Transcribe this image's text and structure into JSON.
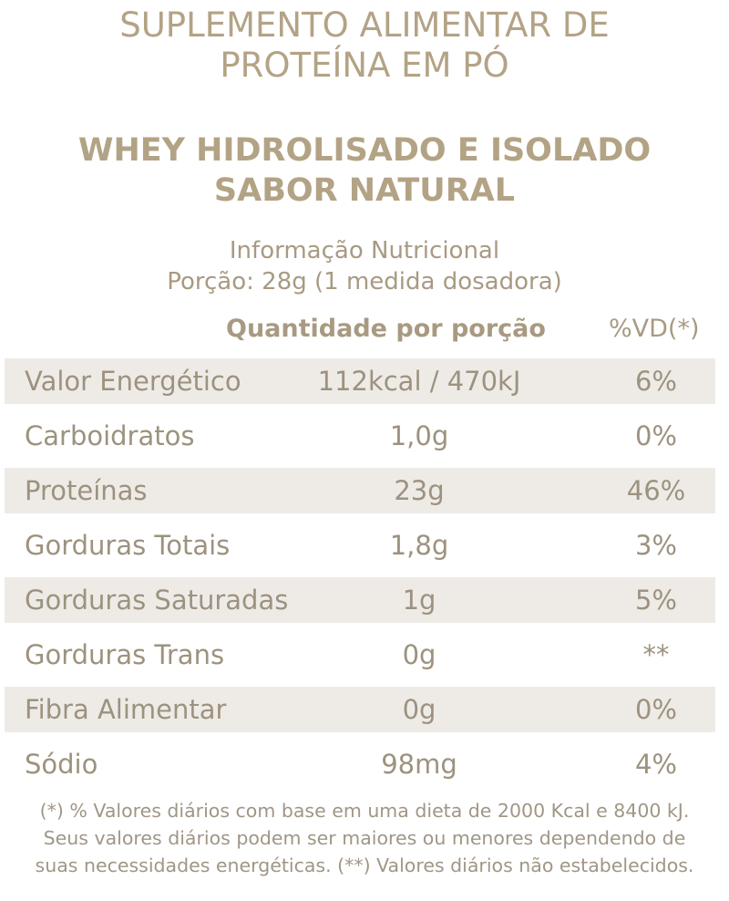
{
  "header": {
    "title_lines": [
      "SUPLEMENTO ALIMENTAR DE",
      "PROTEÍNA EM PÓ"
    ],
    "subtitle_lines": [
      "WHEY HIDROLISADO E ISOLADO",
      "SABOR NATURAL"
    ]
  },
  "info": {
    "title": "Informação Nutricional",
    "portion": "Porção: 28g (1 medida dosadora)"
  },
  "table": {
    "columns": [
      "Quantidade por porção",
      "%VD(*)"
    ],
    "rows": [
      [
        "Valor Energético",
        "112kcal / 470kJ",
        "6%"
      ],
      [
        "Carboidratos",
        "1,0g",
        "0%"
      ],
      [
        "Proteínas",
        "23g",
        "46%"
      ],
      [
        "Gorduras Totais",
        "1,8g",
        "3%"
      ],
      [
        "Gorduras Saturadas",
        "1g",
        "5%"
      ],
      [
        "Gorduras Trans",
        "0g",
        "**"
      ],
      [
        "Fibra Alimentar",
        "0g",
        "0%"
      ],
      [
        "Sódio",
        "98mg",
        "4%"
      ]
    ]
  },
  "footnote": [
    "(*) % Valores diários com base em uma dieta de 2000 Kcal e 8400 kJ.",
    "Seus valores diários podem ser maiores ou menores dependendo de",
    "suas necessidades energéticas. (**) Valores diários não estabelecidos."
  ]
}
